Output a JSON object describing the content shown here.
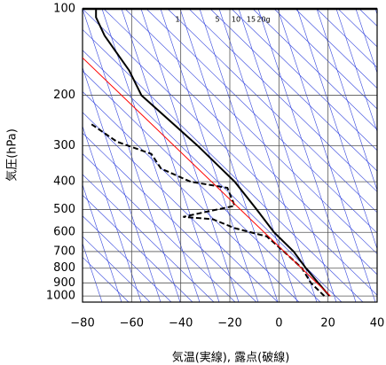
{
  "chart_data": {
    "type": "line",
    "xlabel": "気温(実線), 露点(破線)",
    "ylabel": "気圧(hPa)",
    "xlim": [
      -80,
      40
    ],
    "xticks": [
      {
        "value": -80,
        "label": "−80"
      },
      {
        "value": -60,
        "label": "−60"
      },
      {
        "value": -40,
        "label": "−40"
      },
      {
        "value": -20,
        "label": "−20"
      },
      0,
      20,
      40
    ],
    "ylim": [
      1050,
      100
    ],
    "yticks": [
      100,
      200,
      300,
      400,
      500,
      600,
      700,
      800,
      900,
      1000
    ],
    "log_y": true,
    "grid": true,
    "annotations": [
      "1",
      "5",
      "10",
      "15",
      "20g"
    ],
    "series": [
      {
        "color": "#000000",
        "dash": false,
        "x": [
          20.6,
          16,
          11,
          6,
          -2,
          -9,
          -18,
          -33,
          -56,
          -61,
          -71,
          -74.5,
          -74.5
        ],
        "y": [
          1000,
          900,
          800,
          700,
          600,
          500,
          400,
          300,
          200,
          164,
          124,
          107,
          100
        ]
      },
      {
        "color": "#000000",
        "dash": true,
        "x": [
          18.5,
          13,
          9.4,
          2,
          -5,
          -18,
          -27,
          -39,
          -30,
          -18,
          -21,
          -36,
          -48,
          -52,
          -66,
          -77
        ],
        "y": [
          1000,
          900,
          800,
          700,
          620,
          580,
          540,
          530,
          510,
          485,
          420,
          400,
          360,
          320,
          290,
          250
        ]
      },
      {
        "color": "#ff0000",
        "dash": false,
        "x": [
          21,
          -80
        ],
        "y": [
          1000,
          148
        ]
      }
    ]
  }
}
